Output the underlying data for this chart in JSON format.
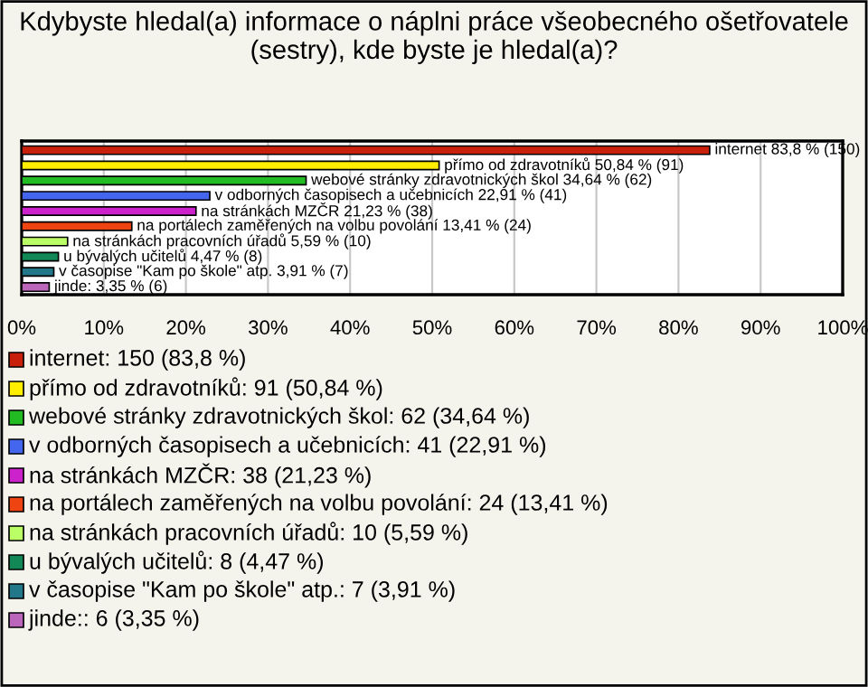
{
  "chart_data": {
    "type": "bar",
    "orientation": "horizontal",
    "title": "Kdybyste hledal(a) informace o náplni práce všeobecného ošetřovatele (sestry), kde byste je hledal(a)?",
    "categories": [
      null,
      null,
      null,
      null,
      null,
      null,
      null,
      null,
      null,
      null
    ],
    "values": [
      83.8,
      50.84,
      34.64,
      22.91,
      21.23,
      13.41,
      5.59,
      4.47,
      3.91,
      3.35
    ],
    "colors": [
      "#c8200a",
      "#ffee00",
      "#22bb22",
      "#4466ee",
      "#cc22cc",
      "#ee4411",
      "#bbff66",
      "#118855",
      "#227788",
      "#bb66bb"
    ],
    "value_labels": [
      "internet 83,8 % (150)",
      "přímo od zdravotníků 50,84 % (91)",
      "webové stránky zdravotnických škol 34,64 % (62)",
      "v odborných časopisech a učebnicích 22,91 % (41)",
      "na stránkách MZČR 21,23 % (38)",
      "na portálech zaměřených na volbu povolání 13,41 % (24)",
      "na stránkách pracovních úřadů 5,59 % (10)",
      "u bývalých učitelů 4,47 % (8)",
      "v časopise \"Kam po škole\" atp. 3,91 % (7)",
      "jinde: 3,35 % (6)"
    ],
    "annotations": [
      "internet: 150 (83,8 %)",
      "přímo od zdravotníků: 91 (50,84 %)",
      "webové stránky zdravotnických škol: 62 (34,64 %)",
      "v odborných časopisech a učebnicích: 41 (22,91 %)",
      "na stránkách MZČR: 38 (21,23 %)",
      "na portálech zaměřených na volbu povolání: 24 (13,41 %)",
      "na stránkách pracovních úřadů: 10 (5,59 %)",
      "u bývalých učitelů: 8 (4,47 %)",
      "v časopise \"Kam po škole\" atp.: 7 (3,91 %)",
      "jinde:: 6 (3,35 %)"
    ],
    "xlim": [
      0,
      100
    ],
    "xticks": [
      {
        "value": 0,
        "label": "0%"
      },
      {
        "value": 10,
        "label": "10%"
      },
      {
        "value": 20,
        "label": "20%"
      },
      {
        "value": 30,
        "label": "30%"
      },
      {
        "value": 40,
        "label": "40%"
      },
      {
        "value": 50,
        "label": "50%"
      },
      {
        "value": 60,
        "label": "60%"
      },
      {
        "value": 70,
        "label": "70%"
      },
      {
        "value": 80,
        "label": "80%"
      },
      {
        "value": 90,
        "label": "90%"
      },
      {
        "value": 100,
        "label": "100%"
      }
    ],
    "grid": "x"
  }
}
